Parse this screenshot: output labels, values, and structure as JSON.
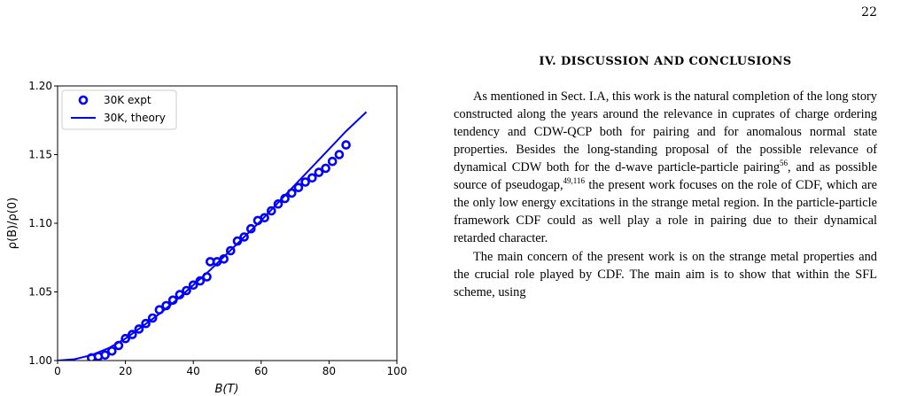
{
  "page_number": "22",
  "section": {
    "heading": "IV.   DISCUSSION AND CONCLUSIONS"
  },
  "paragraphs": [
    {
      "segments": [
        {
          "t": "As mentioned in Sect. I.A, this work is the natural completion of the long story constructed along the years around the relevance in cuprates of charge ordering tendency and CDW-QCP both for pairing and for anomalous normal state properties. Besides the long-standing proposal of the possible relevance of dynamical CDW both for the d-wave particle-particle pairing"
        },
        {
          "sup": "56"
        },
        {
          "t": ", and as possible source of pseudogap,"
        },
        {
          "sup": "49,116"
        },
        {
          "t": " the present work focuses on the role of CDF, which are the only low energy excitations in the strange metal region. In the particle-particle framework CDF could as well play a role in pairing due to their dynamical retarded character."
        }
      ]
    },
    {
      "segments": [
        {
          "t": "The main concern of the present work is on the strange metal properties and the crucial role played by CDF. The main aim is to show that within the SFL scheme, using"
        }
      ]
    }
  ],
  "chart_data": {
    "type": "scatter",
    "xlabel": "B(T)",
    "ylabel": "ρ(B)/ρ(0)",
    "xlim": [
      0,
      100
    ],
    "ylim": [
      1.0,
      1.2
    ],
    "xticks": [
      "0",
      "20",
      "40",
      "60",
      "80",
      "100"
    ],
    "yticks": [
      "1.00",
      "1.05",
      "1.10",
      "1.15",
      "1.20"
    ],
    "legend_position": "top-left",
    "grid": false,
    "series": [
      {
        "name": "30K expt",
        "kind": "markers",
        "color": "#0000ff",
        "points": [
          [
            10,
            1.002
          ],
          [
            12,
            1.003
          ],
          [
            14,
            1.004
          ],
          [
            16,
            1.007
          ],
          [
            18,
            1.011
          ],
          [
            20,
            1.016
          ],
          [
            22,
            1.019
          ],
          [
            24,
            1.023
          ],
          [
            26,
            1.027
          ],
          [
            28,
            1.031
          ],
          [
            30,
            1.037
          ],
          [
            32,
            1.04
          ],
          [
            34,
            1.044
          ],
          [
            36,
            1.048
          ],
          [
            38,
            1.051
          ],
          [
            40,
            1.055
          ],
          [
            42,
            1.058
          ],
          [
            44,
            1.061
          ],
          [
            45,
            1.072
          ],
          [
            47,
            1.072
          ],
          [
            49,
            1.074
          ],
          [
            51,
            1.08
          ],
          [
            53,
            1.087
          ],
          [
            55,
            1.09
          ],
          [
            57,
            1.096
          ],
          [
            59,
            1.102
          ],
          [
            61,
            1.104
          ],
          [
            63,
            1.109
          ],
          [
            65,
            1.114
          ],
          [
            67,
            1.118
          ],
          [
            69,
            1.122
          ],
          [
            71,
            1.126
          ],
          [
            73,
            1.13
          ],
          [
            75,
            1.133
          ],
          [
            77,
            1.137
          ],
          [
            79,
            1.14
          ],
          [
            81,
            1.145
          ],
          [
            83,
            1.15
          ],
          [
            85,
            1.157
          ]
        ]
      },
      {
        "name": "30K, theory",
        "kind": "line",
        "color": "#0000ff",
        "points": [
          [
            0,
            1.0
          ],
          [
            5,
            1.001
          ],
          [
            10,
            1.004
          ],
          [
            15,
            1.009
          ],
          [
            20,
            1.016
          ],
          [
            25,
            1.025
          ],
          [
            30,
            1.034
          ],
          [
            35,
            1.044
          ],
          [
            40,
            1.055
          ],
          [
            45,
            1.066
          ],
          [
            50,
            1.078
          ],
          [
            55,
            1.09
          ],
          [
            60,
            1.102
          ],
          [
            65,
            1.115
          ],
          [
            70,
            1.128
          ],
          [
            75,
            1.141
          ],
          [
            80,
            1.154
          ],
          [
            85,
            1.167
          ],
          [
            91,
            1.181
          ]
        ]
      }
    ]
  }
}
